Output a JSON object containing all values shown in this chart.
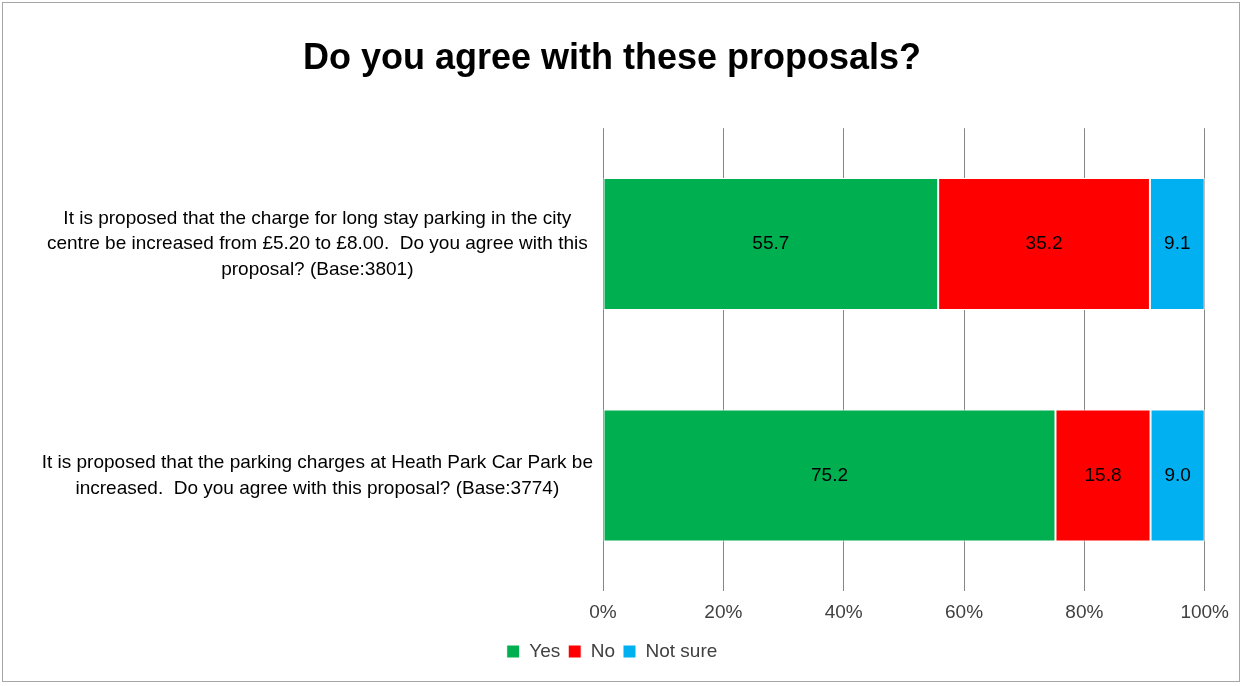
{
  "chart_data": {
    "type": "bar",
    "orientation": "horizontal",
    "stacked": true,
    "title": "Do you agree with these proposals?",
    "categories": [
      "It is proposed that the charge for long stay parking in the city centre be increased from £5.20 to £8.00.  Do you agree with this proposal? (Base:3801)",
      "It is proposed that the parking charges at Heath Park Car Park be increased.  Do you agree with this proposal? (Base:3774)"
    ],
    "series": [
      {
        "name": "Yes",
        "color": "#00b050",
        "values": [
          55.7,
          75.2
        ],
        "value_labels": [
          "55.7",
          "75.2"
        ]
      },
      {
        "name": "No",
        "color": "#ff0000",
        "values": [
          35.2,
          15.8
        ],
        "value_labels": [
          "35.2",
          "15.8"
        ]
      },
      {
        "name": "Not sure",
        "color": "#00b0f0",
        "values": [
          9.1,
          9.0
        ],
        "value_labels": [
          "9.1",
          "9.0"
        ]
      }
    ],
    "xlim": [
      0,
      100
    ],
    "xticks": [
      {
        "value": 0,
        "label": "0%"
      },
      {
        "value": 20,
        "label": "20%"
      },
      {
        "value": 40,
        "label": "40%"
      },
      {
        "value": 60,
        "label": "60%"
      },
      {
        "value": 80,
        "label": "80%"
      },
      {
        "value": 100,
        "label": "100%"
      }
    ],
    "grid": "x",
    "legend": "bottom"
  }
}
